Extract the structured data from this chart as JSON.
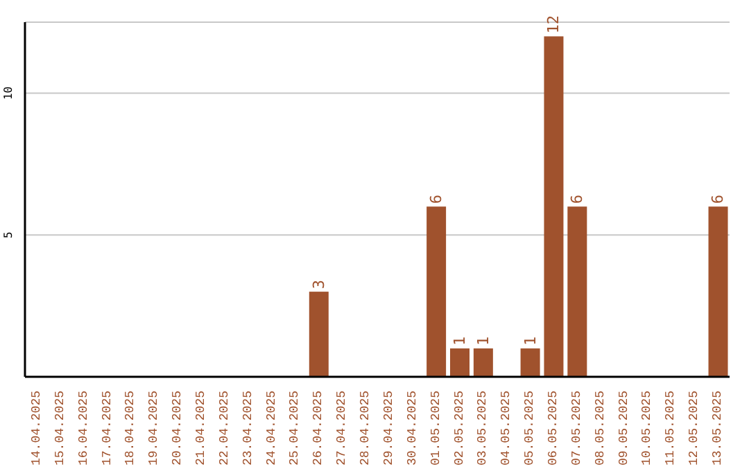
{
  "chart_data": {
    "type": "bar",
    "categories": [
      "14.04.2025",
      "15.04.2025",
      "16.04.2025",
      "17.04.2025",
      "18.04.2025",
      "19.04.2025",
      "20.04.2025",
      "21.04.2025",
      "22.04.2025",
      "23.04.2025",
      "24.04.2025",
      "25.04.2025",
      "26.04.2025",
      "27.04.2025",
      "28.04.2025",
      "29.04.2025",
      "30.04.2025",
      "01.05.2025",
      "02.05.2025",
      "03.05.2025",
      "04.05.2025",
      "05.05.2025",
      "06.05.2025",
      "07.05.2025",
      "08.05.2025",
      "09.05.2025",
      "10.05.2025",
      "11.05.2025",
      "12.05.2025",
      "13.05.2025"
    ],
    "values": [
      0,
      0,
      0,
      0,
      0,
      0,
      0,
      0,
      0,
      0,
      0,
      0,
      3,
      0,
      0,
      0,
      0,
      6,
      1,
      1,
      0,
      1,
      12,
      6,
      0,
      0,
      0,
      0,
      0,
      6
    ],
    "value_labels": [
      null,
      null,
      null,
      null,
      null,
      null,
      null,
      null,
      null,
      null,
      null,
      null,
      "3",
      null,
      null,
      null,
      null,
      "6",
      "1",
      "1",
      null,
      "1",
      "12",
      "6",
      null,
      null,
      null,
      null,
      null,
      "6"
    ],
    "color": "#a0522d",
    "ylim": [
      0,
      12.5
    ],
    "yticks": [
      5,
      10
    ],
    "grid": "y"
  }
}
